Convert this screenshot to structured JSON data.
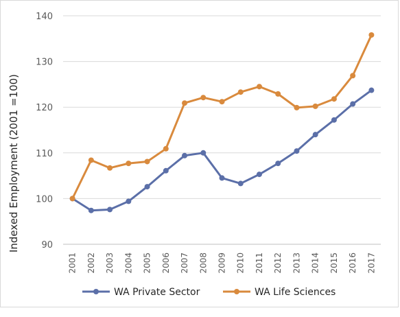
{
  "chart_data": {
    "type": "line",
    "title": "",
    "xlabel": "",
    "ylabel": "Indexed Employment (2001 =100)",
    "ylim": [
      90,
      140
    ],
    "yticks": [
      90,
      100,
      110,
      120,
      130,
      140
    ],
    "grid": true,
    "legend_position": "bottom",
    "categories": [
      "2001",
      "2002",
      "2003",
      "2004",
      "2005",
      "2006",
      "2007",
      "2008",
      "2009",
      "2010",
      "2011",
      "2012",
      "2013",
      "2014",
      "2015",
      "2016",
      "2017"
    ],
    "series": [
      {
        "name": "WA Private Sector",
        "color": "#5b6fa8",
        "values": [
          100,
          97.4,
          97.6,
          99.4,
          102.6,
          106.1,
          109.4,
          110.0,
          104.5,
          103.3,
          105.3,
          107.7,
          110.4,
          114.0,
          117.2,
          120.7,
          123.7
        ]
      },
      {
        "name": "WA Life Sciences",
        "color": "#d98a3d",
        "values": [
          100,
          108.4,
          106.7,
          107.7,
          108.1,
          110.9,
          120.9,
          122.1,
          121.2,
          123.3,
          124.5,
          122.9,
          119.9,
          120.2,
          121.8,
          126.9,
          135.8
        ]
      }
    ]
  }
}
